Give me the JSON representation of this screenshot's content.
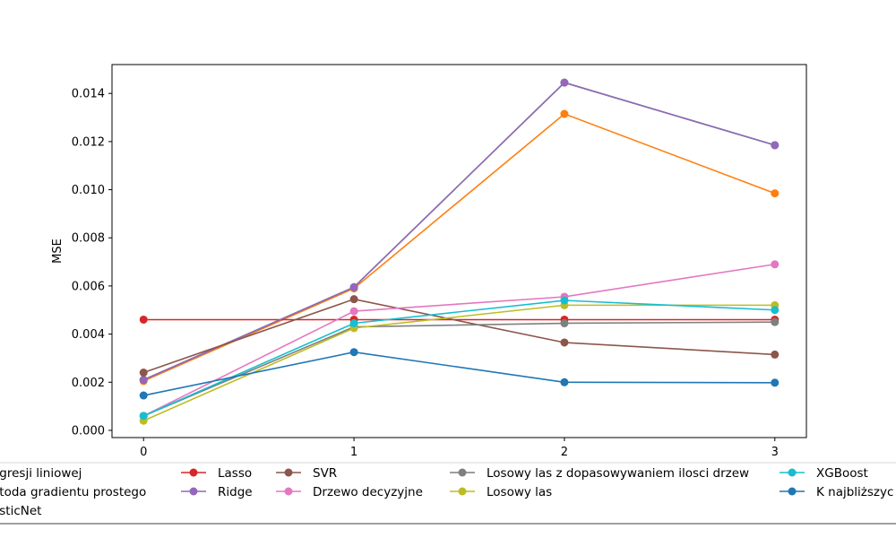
{
  "chart_data": {
    "type": "line",
    "title": "",
    "xlabel": "",
    "ylabel": "MSE",
    "x": [
      0,
      1,
      2,
      3
    ],
    "xticks": [
      "0",
      "1",
      "2",
      "3"
    ],
    "xlim": [
      -0.15,
      3.15
    ],
    "ylim": [
      -0.0003,
      0.0152
    ],
    "yticks": [
      "0.000",
      "0.002",
      "0.004",
      "0.006",
      "0.008",
      "0.010",
      "0.012",
      "0.014"
    ],
    "grid": false,
    "legend_placement": "bottom",
    "legend_columns": [
      [
        "egresji liniowej",
        "etoda gradientu prostego",
        "asticNet"
      ],
      [
        "Lasso",
        "Ridge"
      ],
      [
        "SVR",
        "Drzewo decyzyjne"
      ],
      [
        "Losowy las z dopasowywaniem ilosci drzew",
        "Losowy las"
      ],
      [
        "XGBoost",
        "K najbliższyc"
      ]
    ],
    "series": [
      {
        "name": "egresji liniowej",
        "color": "#1f77b4",
        "values": [
          null,
          null,
          null,
          null
        ]
      },
      {
        "name": "etoda gradientu prostego",
        "color": "#ff7f0e",
        "values": [
          0.00205,
          0.0059,
          0.01315,
          0.00985
        ]
      },
      {
        "name": "asticNet",
        "color": "#2ca02c",
        "values": [
          0.0021,
          0.00595,
          0.01445,
          0.01185
        ]
      },
      {
        "name": "Lasso",
        "color": "#d62728",
        "values": [
          0.0046,
          0.0046,
          0.0046,
          0.0046
        ]
      },
      {
        "name": "Ridge",
        "color": "#9467bd",
        "values": [
          0.0021,
          0.00595,
          0.01445,
          0.01185
        ]
      },
      {
        "name": "SVR",
        "color": "#8c564b",
        "values": [
          0.0024,
          0.00545,
          0.00365,
          0.00315
        ]
      },
      {
        "name": "Drzewo decyzyjne",
        "color": "#e377c2",
        "values": [
          0.0006,
          0.00495,
          0.00555,
          0.0069
        ]
      },
      {
        "name": "Losowy las z dopasowywaniem ilosci drzew",
        "color": "#7f7f7f",
        "values": [
          0.0006,
          0.0043,
          0.00445,
          0.0045
        ]
      },
      {
        "name": "Losowy las",
        "color": "#bcbd22",
        "values": [
          0.0004,
          0.00425,
          0.0052,
          0.0052
        ]
      },
      {
        "name": "XGBoost",
        "color": "#17becf",
        "values": [
          0.0006,
          0.00445,
          0.0054,
          0.005
        ]
      },
      {
        "name": "K najbliższyc",
        "color": "#1f77b4",
        "values": [
          0.00145,
          0.00325,
          0.002,
          0.00198
        ]
      }
    ]
  }
}
